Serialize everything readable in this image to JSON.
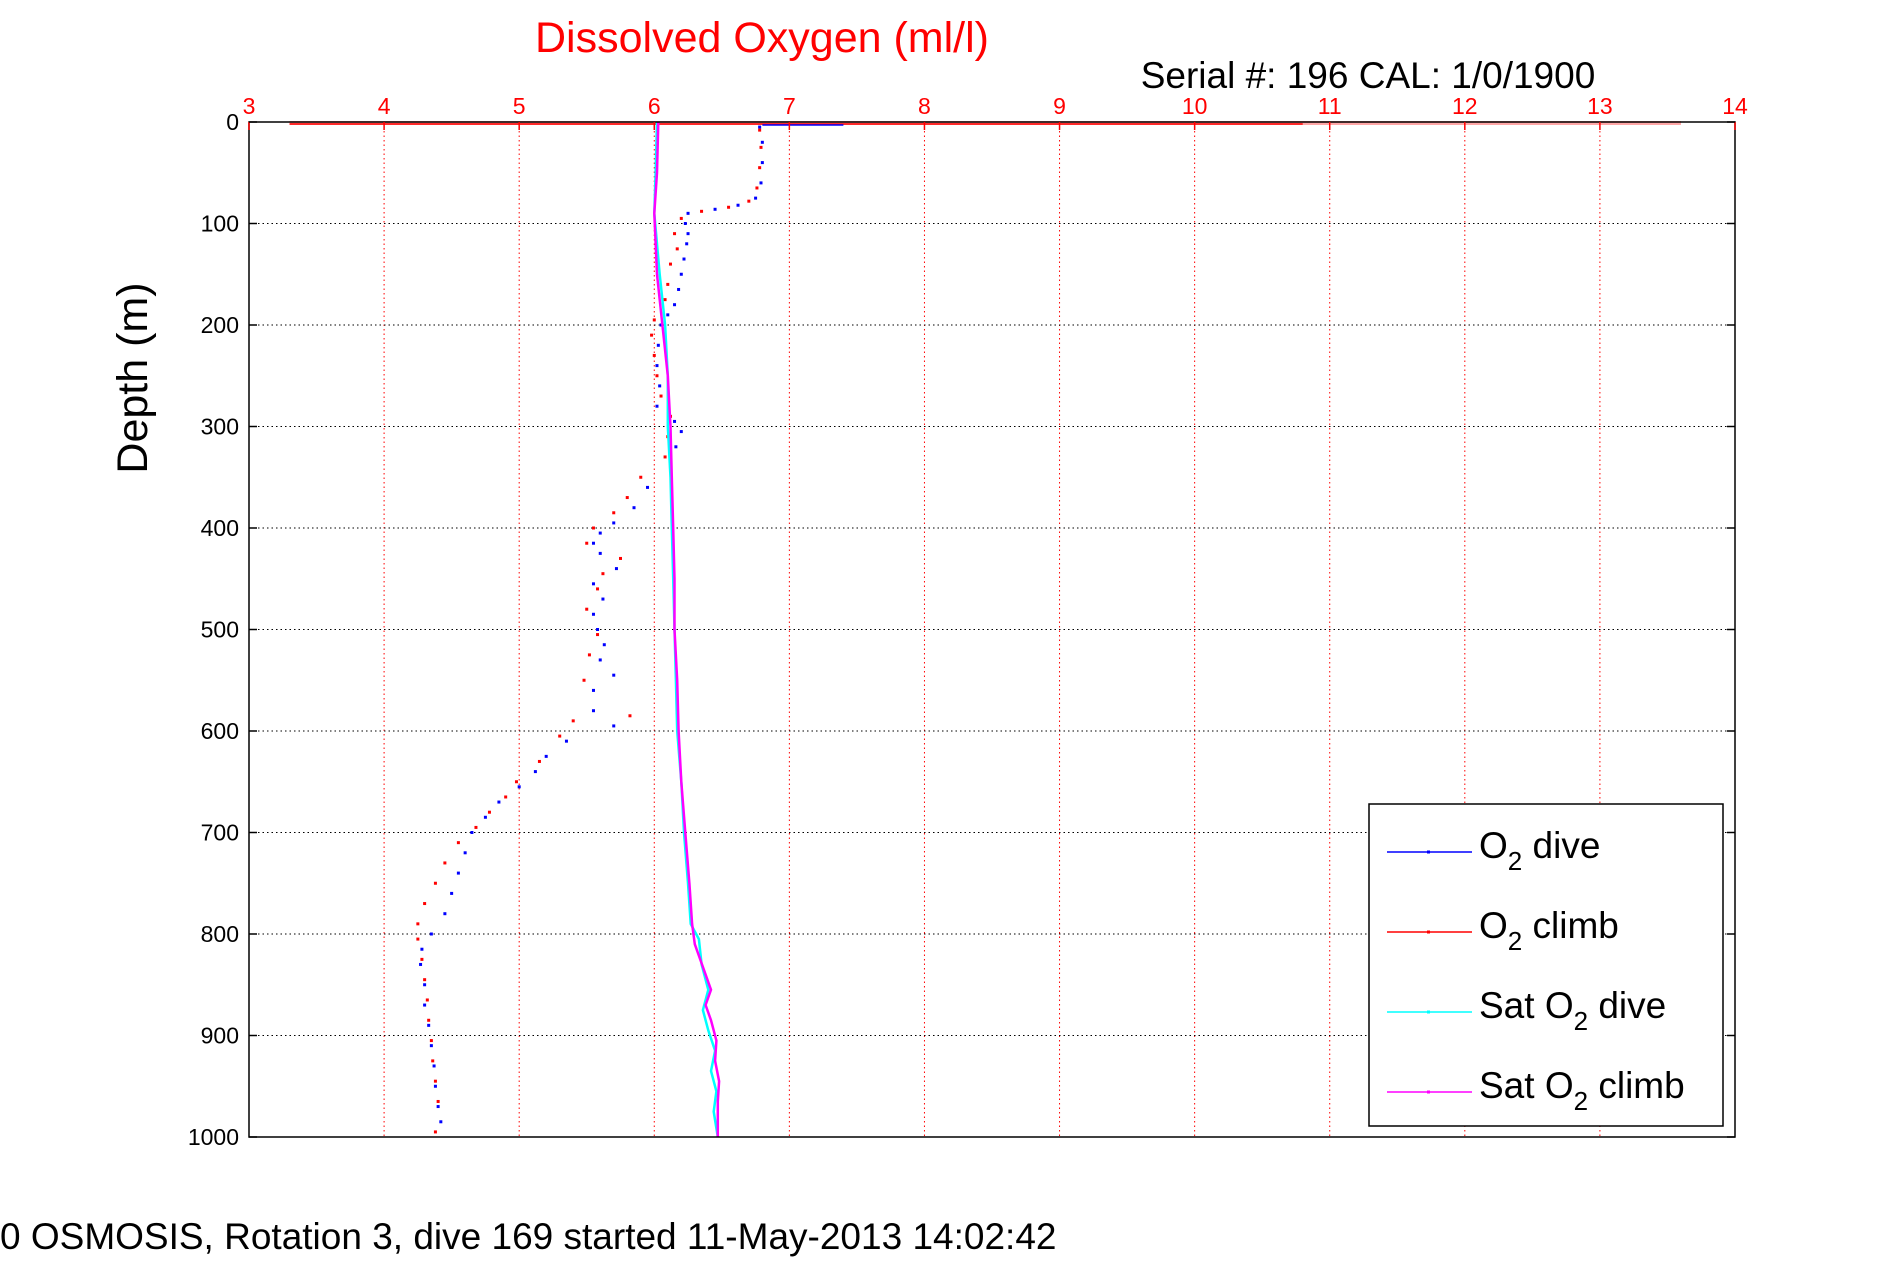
{
  "chart_data": {
    "type": "line",
    "title": "Dissolved Oxygen (ml/l)",
    "subtitle_serial": "Serial #: 196  CAL: 1/0/1900",
    "footer": "0 OSMOSIS, Rotation 3, dive 169 started 11-May-2013 14:02:42",
    "ylabel": "Depth (m)",
    "xlim": [
      3,
      14
    ],
    "ylim": [
      0,
      1000
    ],
    "y_reversed": true,
    "x_ticks": [
      3,
      4,
      5,
      6,
      7,
      8,
      9,
      10,
      11,
      12,
      13,
      14
    ],
    "y_ticks": [
      0,
      100,
      200,
      300,
      400,
      500,
      600,
      700,
      800,
      900,
      1000
    ],
    "grid": true,
    "legend_position": "bottom-right",
    "series": [
      {
        "name": "O2 dive",
        "legend_main": "O",
        "legend_sub": "2",
        "legend_rest": " dive",
        "color": "#0000ff",
        "style": "dots",
        "points": [
          [
            6.78,
            5
          ],
          [
            6.8,
            20
          ],
          [
            6.8,
            40
          ],
          [
            6.79,
            60
          ],
          [
            6.75,
            75
          ],
          [
            6.62,
            82
          ],
          [
            6.45,
            86
          ],
          [
            6.25,
            90
          ],
          [
            6.23,
            100
          ],
          [
            6.25,
            110
          ],
          [
            6.24,
            120
          ],
          [
            6.22,
            135
          ],
          [
            6.2,
            150
          ],
          [
            6.18,
            165
          ],
          [
            6.15,
            180
          ],
          [
            6.1,
            190
          ],
          [
            6.05,
            200
          ],
          [
            6.03,
            220
          ],
          [
            6.02,
            240
          ],
          [
            6.04,
            260
          ],
          [
            6.02,
            280
          ],
          [
            6.15,
            295
          ],
          [
            6.2,
            305
          ],
          [
            6.16,
            320
          ],
          [
            6.12,
            340
          ],
          [
            5.95,
            360
          ],
          [
            5.85,
            380
          ],
          [
            5.7,
            395
          ],
          [
            5.6,
            405
          ],
          [
            5.55,
            415
          ],
          [
            5.6,
            425
          ],
          [
            5.72,
            440
          ],
          [
            5.55,
            455
          ],
          [
            5.62,
            470
          ],
          [
            5.55,
            485
          ],
          [
            5.58,
            500
          ],
          [
            5.63,
            515
          ],
          [
            5.6,
            530
          ],
          [
            5.7,
            545
          ],
          [
            5.55,
            560
          ],
          [
            5.55,
            580
          ],
          [
            5.7,
            595
          ],
          [
            5.35,
            610
          ],
          [
            5.2,
            625
          ],
          [
            5.12,
            640
          ],
          [
            5.0,
            655
          ],
          [
            4.85,
            670
          ],
          [
            4.75,
            685
          ],
          [
            4.65,
            700
          ],
          [
            4.6,
            720
          ],
          [
            4.55,
            740
          ],
          [
            4.5,
            760
          ],
          [
            4.45,
            780
          ],
          [
            4.35,
            800
          ],
          [
            4.28,
            815
          ],
          [
            4.27,
            830
          ],
          [
            4.3,
            850
          ],
          [
            4.3,
            870
          ],
          [
            4.33,
            890
          ],
          [
            4.35,
            910
          ],
          [
            4.37,
            930
          ],
          [
            4.38,
            950
          ],
          [
            4.4,
            970
          ],
          [
            4.42,
            985
          ]
        ]
      },
      {
        "name": "O2 climb",
        "legend_main": "O",
        "legend_sub": "2",
        "legend_rest": " climb",
        "color": "#ff0000",
        "style": "dots",
        "points": [
          [
            6.78,
            8
          ],
          [
            6.79,
            25
          ],
          [
            6.78,
            45
          ],
          [
            6.76,
            65
          ],
          [
            6.7,
            78
          ],
          [
            6.55,
            84
          ],
          [
            6.35,
            88
          ],
          [
            6.2,
            95
          ],
          [
            6.15,
            110
          ],
          [
            6.17,
            125
          ],
          [
            6.12,
            140
          ],
          [
            6.1,
            160
          ],
          [
            6.08,
            175
          ],
          [
            6.0,
            195
          ],
          [
            5.98,
            210
          ],
          [
            6.0,
            230
          ],
          [
            6.02,
            250
          ],
          [
            6.05,
            270
          ],
          [
            6.12,
            290
          ],
          [
            6.1,
            310
          ],
          [
            6.08,
            330
          ],
          [
            5.9,
            350
          ],
          [
            5.8,
            370
          ],
          [
            5.7,
            385
          ],
          [
            5.55,
            400
          ],
          [
            5.5,
            415
          ],
          [
            5.75,
            430
          ],
          [
            5.62,
            445
          ],
          [
            5.58,
            460
          ],
          [
            5.5,
            480
          ],
          [
            5.58,
            505
          ],
          [
            5.52,
            525
          ],
          [
            5.48,
            550
          ],
          [
            5.82,
            585
          ],
          [
            5.4,
            590
          ],
          [
            5.3,
            605
          ],
          [
            5.15,
            630
          ],
          [
            4.98,
            650
          ],
          [
            4.9,
            665
          ],
          [
            4.78,
            680
          ],
          [
            4.68,
            695
          ],
          [
            4.55,
            710
          ],
          [
            4.45,
            730
          ],
          [
            4.38,
            750
          ],
          [
            4.3,
            770
          ],
          [
            4.25,
            790
          ],
          [
            4.25,
            805
          ],
          [
            4.28,
            825
          ],
          [
            4.3,
            845
          ],
          [
            4.32,
            865
          ],
          [
            4.33,
            885
          ],
          [
            4.35,
            905
          ],
          [
            4.36,
            925
          ],
          [
            4.38,
            945
          ],
          [
            4.4,
            965
          ],
          [
            4.38,
            995
          ]
        ]
      },
      {
        "name": "Sat O2 dive",
        "legend_main": "Sat O",
        "legend_sub": "2",
        "legend_rest": " dive",
        "color": "#00ffff",
        "style": "line",
        "points": [
          [
            6.02,
            0
          ],
          [
            6.01,
            50
          ],
          [
            6.0,
            90
          ],
          [
            6.04,
            150
          ],
          [
            6.08,
            200
          ],
          [
            6.1,
            250
          ],
          [
            6.1,
            300
          ],
          [
            6.12,
            350
          ],
          [
            6.13,
            400
          ],
          [
            6.14,
            450
          ],
          [
            6.15,
            500
          ],
          [
            6.16,
            550
          ],
          [
            6.17,
            600
          ],
          [
            6.2,
            650
          ],
          [
            6.22,
            700
          ],
          [
            6.25,
            750
          ],
          [
            6.27,
            790
          ],
          [
            6.33,
            805
          ],
          [
            6.35,
            830
          ],
          [
            6.4,
            855
          ],
          [
            6.36,
            875
          ],
          [
            6.4,
            895
          ],
          [
            6.45,
            915
          ],
          [
            6.42,
            935
          ],
          [
            6.46,
            955
          ],
          [
            6.44,
            975
          ],
          [
            6.47,
            1000
          ]
        ]
      },
      {
        "name": "Sat O2 climb",
        "legend_main": "Sat O",
        "legend_sub": "2",
        "legend_rest": " climb",
        "color": "#ff00ff",
        "style": "line",
        "points": [
          [
            6.03,
            0
          ],
          [
            6.02,
            50
          ],
          [
            6.0,
            90
          ],
          [
            6.02,
            150
          ],
          [
            6.06,
            200
          ],
          [
            6.1,
            250
          ],
          [
            6.12,
            300
          ],
          [
            6.13,
            350
          ],
          [
            6.14,
            400
          ],
          [
            6.15,
            450
          ],
          [
            6.15,
            500
          ],
          [
            6.17,
            550
          ],
          [
            6.18,
            600
          ],
          [
            6.2,
            650
          ],
          [
            6.23,
            700
          ],
          [
            6.26,
            750
          ],
          [
            6.28,
            790
          ],
          [
            6.3,
            810
          ],
          [
            6.38,
            840
          ],
          [
            6.42,
            855
          ],
          [
            6.38,
            870
          ],
          [
            6.42,
            885
          ],
          [
            6.46,
            905
          ],
          [
            6.45,
            925
          ],
          [
            6.48,
            945
          ],
          [
            6.47,
            965
          ],
          [
            6.47,
            1000
          ]
        ]
      }
    ]
  }
}
